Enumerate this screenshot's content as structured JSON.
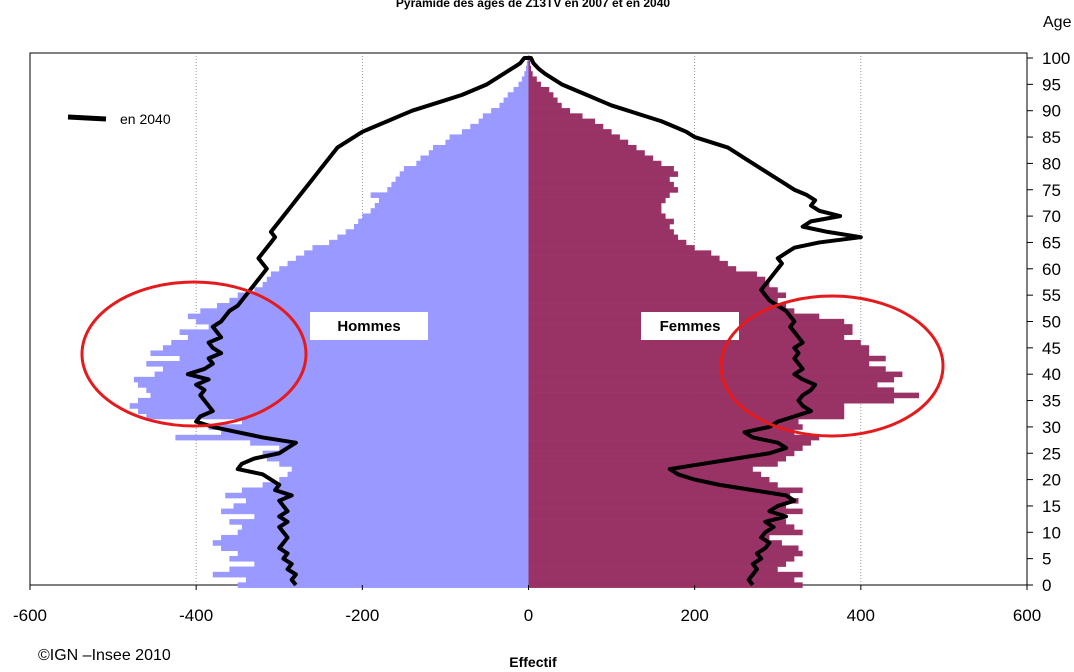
{
  "chart_data": {
    "type": "bar",
    "orientation": "horizontal-pyramid",
    "title": "Pyramide des âges de Z13TV en 2007 et en 2040",
    "xlabel": "Effectif",
    "ylabel": "Age",
    "xlim": [
      -600,
      600
    ],
    "ylim": [
      0,
      100
    ],
    "x_ticks": [
      "-600",
      "-400",
      "-200",
      "0",
      "200",
      "400",
      "600"
    ],
    "y_ticks": [
      "0",
      "5",
      "10",
      "15",
      "20",
      "25",
      "30",
      "35",
      "40",
      "45",
      "50",
      "55",
      "60",
      "65",
      "70",
      "75",
      "80",
      "85",
      "90",
      "95",
      "100"
    ],
    "grid": "vertical dotted",
    "group_labels": {
      "male": "Hommes",
      "female": "Femmes"
    },
    "legend": {
      "label": "en 2040",
      "position": "top-left"
    },
    "colors": {
      "male": "#9999ff",
      "female": "#993366",
      "line2040": "#000000",
      "highlight": "#e41a1c"
    },
    "ages": [
      0,
      1,
      2,
      3,
      4,
      5,
      6,
      7,
      8,
      9,
      10,
      11,
      12,
      13,
      14,
      15,
      16,
      17,
      18,
      19,
      20,
      21,
      22,
      23,
      24,
      25,
      26,
      27,
      28,
      29,
      30,
      31,
      32,
      33,
      34,
      35,
      36,
      37,
      38,
      39,
      40,
      41,
      42,
      43,
      44,
      45,
      46,
      47,
      48,
      49,
      50,
      51,
      52,
      53,
      54,
      55,
      56,
      57,
      58,
      59,
      60,
      61,
      62,
      63,
      64,
      65,
      66,
      67,
      68,
      69,
      70,
      71,
      72,
      73,
      74,
      75,
      76,
      77,
      78,
      79,
      80,
      81,
      82,
      83,
      84,
      85,
      86,
      87,
      88,
      89,
      90,
      91,
      92,
      93,
      94,
      95,
      96,
      97,
      98,
      99,
      100
    ],
    "men_2007": [
      350,
      340,
      380,
      360,
      330,
      360,
      350,
      370,
      380,
      370,
      350,
      345,
      360,
      330,
      370,
      355,
      340,
      365,
      345,
      320,
      300,
      290,
      285,
      300,
      315,
      320,
      300,
      335,
      425,
      370,
      385,
      345,
      460,
      470,
      480,
      470,
      455,
      460,
      470,
      475,
      450,
      440,
      460,
      420,
      455,
      440,
      430,
      410,
      420,
      385,
      400,
      410,
      395,
      375,
      360,
      350,
      330,
      320,
      315,
      310,
      300,
      290,
      280,
      270,
      260,
      240,
      230,
      220,
      210,
      205,
      200,
      190,
      185,
      180,
      190,
      170,
      165,
      160,
      155,
      150,
      135,
      130,
      120,
      115,
      100,
      95,
      80,
      70,
      60,
      55,
      45,
      35,
      30,
      25,
      18,
      12,
      8,
      5,
      3,
      2,
      1
    ],
    "women_2007": [
      330,
      320,
      330,
      300,
      310,
      320,
      330,
      325,
      305,
      290,
      330,
      320,
      310,
      300,
      330,
      310,
      325,
      315,
      330,
      300,
      290,
      280,
      270,
      300,
      310,
      320,
      330,
      340,
      350,
      320,
      330,
      325,
      380,
      380,
      380,
      440,
      470,
      440,
      420,
      440,
      450,
      430,
      410,
      430,
      410,
      410,
      400,
      380,
      390,
      390,
      380,
      350,
      320,
      310,
      300,
      310,
      300,
      290,
      285,
      275,
      250,
      240,
      230,
      220,
      200,
      190,
      180,
      175,
      170,
      175,
      165,
      160,
      160,
      165,
      170,
      180,
      175,
      170,
      180,
      175,
      160,
      150,
      140,
      130,
      120,
      110,
      100,
      90,
      80,
      65,
      50,
      40,
      35,
      30,
      25,
      15,
      10,
      5,
      3,
      2,
      1
    ],
    "men_2040": [
      280,
      285,
      280,
      290,
      285,
      295,
      290,
      300,
      295,
      290,
      295,
      300,
      290,
      300,
      290,
      295,
      300,
      285,
      305,
      300,
      310,
      320,
      350,
      345,
      330,
      300,
      290,
      280,
      320,
      350,
      380,
      400,
      395,
      380,
      385,
      390,
      395,
      390,
      400,
      385,
      410,
      390,
      380,
      385,
      370,
      380,
      385,
      370,
      375,
      380,
      370,
      365,
      360,
      350,
      345,
      340,
      335,
      330,
      325,
      320,
      315,
      320,
      325,
      320,
      315,
      310,
      305,
      310,
      305,
      300,
      295,
      290,
      285,
      280,
      275,
      270,
      265,
      260,
      255,
      250,
      245,
      240,
      235,
      230,
      220,
      210,
      200,
      185,
      170,
      155,
      140,
      120,
      100,
      80,
      65,
      50,
      40,
      30,
      20,
      10,
      5
    ],
    "women_2040": [
      270,
      265,
      270,
      275,
      270,
      280,
      275,
      285,
      290,
      280,
      285,
      295,
      285,
      310,
      290,
      300,
      320,
      310,
      270,
      230,
      200,
      180,
      170,
      210,
      250,
      290,
      310,
      300,
      270,
      260,
      290,
      300,
      320,
      340,
      330,
      325,
      330,
      340,
      345,
      330,
      320,
      330,
      325,
      320,
      325,
      320,
      330,
      325,
      320,
      315,
      320,
      315,
      310,
      300,
      290,
      285,
      280,
      285,
      290,
      295,
      300,
      305,
      300,
      310,
      320,
      350,
      400,
      360,
      330,
      340,
      375,
      350,
      340,
      345,
      335,
      320,
      310,
      300,
      290,
      280,
      270,
      260,
      250,
      240,
      220,
      200,
      190,
      175,
      160,
      140,
      120,
      100,
      85,
      70,
      55,
      40,
      30,
      20,
      12,
      6,
      3
    ]
  },
  "labels": {
    "title": "Pyramide des âges de Z13TV en 2007 et en 2040",
    "age_axis": "Age",
    "effectif_axis": "Effectif",
    "hommes": "Hommes",
    "femmes": "Femmes",
    "legend_2040": "en 2040",
    "credit": "©IGN –Insee 2010"
  }
}
